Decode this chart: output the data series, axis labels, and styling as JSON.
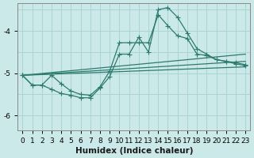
{
  "xlabel": "Humidex (Indice chaleur)",
  "background_color": "#cce9e9",
  "grid_color": "#aad4d4",
  "line_color": "#2d7b6e",
  "xlim": [
    -0.5,
    23.5
  ],
  "ylim": [
    -6.35,
    -3.35
  ],
  "yticks": [
    -6,
    -5,
    -4
  ],
  "xticks": [
    0,
    1,
    2,
    3,
    4,
    5,
    6,
    7,
    8,
    9,
    10,
    11,
    12,
    13,
    14,
    15,
    16,
    17,
    18,
    19,
    20,
    21,
    22,
    23
  ],
  "line1_x": [
    0,
    1,
    2,
    3,
    4,
    5,
    6,
    7,
    8,
    9,
    10,
    11,
    12,
    13,
    14,
    15,
    16,
    17,
    18,
    19,
    20,
    21,
    22,
    23
  ],
  "line1_y": [
    -5.05,
    -5.28,
    -5.28,
    -5.38,
    -5.48,
    -5.52,
    -5.58,
    -5.58,
    -5.35,
    -5.08,
    -4.55,
    -4.55,
    -4.15,
    -4.5,
    -3.5,
    -3.45,
    -3.68,
    -4.05,
    -4.42,
    -4.55,
    -4.68,
    -4.72,
    -4.75,
    -4.8
  ],
  "line2_x": [
    0,
    1,
    2,
    3,
    4,
    5,
    6,
    7,
    8,
    9,
    10,
    11,
    12,
    13,
    14,
    15,
    16,
    17,
    18,
    19,
    20,
    21,
    22,
    23
  ],
  "line2_y": [
    -5.05,
    -5.28,
    -5.28,
    -5.05,
    -5.25,
    -5.42,
    -5.5,
    -5.52,
    -5.32,
    -4.95,
    -4.28,
    -4.28,
    -4.28,
    -4.28,
    -3.62,
    -3.88,
    -4.12,
    -4.18,
    -4.55,
    -4.58,
    -4.68,
    -4.72,
    -4.78,
    -4.82
  ],
  "line3_x": [
    0,
    23
  ],
  "line3_y": [
    -5.05,
    -4.55
  ],
  "line4_x": [
    0,
    23
  ],
  "line4_y": [
    -5.05,
    -4.72
  ],
  "line5_x": [
    0,
    23
  ],
  "line5_y": [
    -5.05,
    -4.85
  ]
}
